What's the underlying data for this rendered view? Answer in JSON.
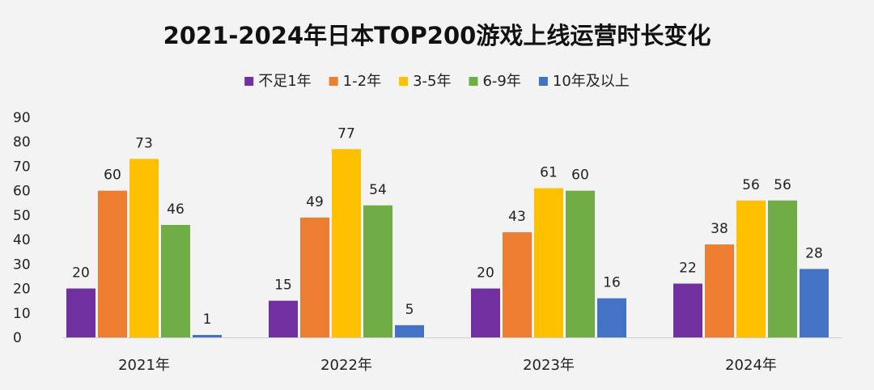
{
  "chart_data": {
    "type": "bar",
    "title": "2021-2024年日本TOP200游戏上线运营时长变化",
    "categories": [
      "2021年",
      "2022年",
      "2023年",
      "2024年"
    ],
    "series": [
      {
        "name": "不足1年",
        "color": "#7030a0",
        "values": [
          20,
          15,
          20,
          22
        ]
      },
      {
        "name": "1-2年",
        "color": "#ed7d31",
        "values": [
          60,
          49,
          43,
          38
        ]
      },
      {
        "name": "3-5年",
        "color": "#ffc000",
        "values": [
          73,
          77,
          61,
          56
        ]
      },
      {
        "name": "6-9年",
        "color": "#70ad47",
        "values": [
          46,
          54,
          60,
          56
        ]
      },
      {
        "name": "10年及以上",
        "color": "#4472c4",
        "values": [
          1,
          5,
          16,
          28
        ]
      }
    ],
    "ylim": [
      0,
      90
    ],
    "yticks": [
      0,
      10,
      20,
      30,
      40,
      50,
      60,
      70,
      80,
      90
    ],
    "xlabel": "",
    "ylabel": "",
    "legend_position": "top-center",
    "grid": false,
    "data_labels": true
  }
}
